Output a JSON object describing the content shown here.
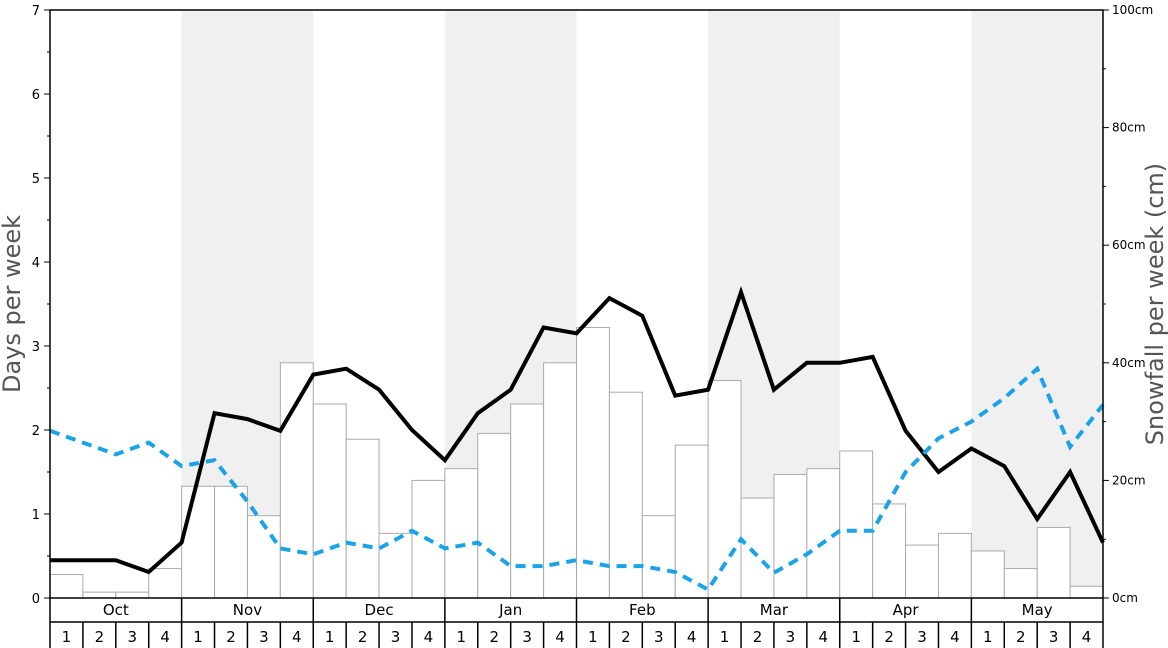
{
  "chart_data": {
    "type": "bar",
    "months": [
      "Oct",
      "Nov",
      "Dec",
      "Jan",
      "Feb",
      "Mar",
      "Apr",
      "May"
    ],
    "weeks": [
      "1",
      "2",
      "3",
      "4"
    ],
    "ylabel": "Days per week",
    "ylabel_right": "Snowfall per week (cm)",
    "ylim": [
      0,
      7
    ],
    "y_ticks": [
      "0",
      "1",
      "2",
      "3",
      "4",
      "5",
      "6",
      "7"
    ],
    "ylim_right": [
      0,
      100
    ],
    "y_ticks_right": [
      "0cm",
      "20cm",
      "40cm",
      "60cm",
      "80cm",
      "100cm"
    ],
    "shaded_months": [
      "Nov",
      "Jan",
      "Mar",
      "May"
    ],
    "series": [
      {
        "kind": "bar",
        "axis": "right",
        "color": "#ffffff",
        "edge_color": "#aaaaaa",
        "values": [
          4,
          1,
          1,
          5,
          19,
          19,
          14,
          40,
          33,
          27,
          11,
          20,
          22,
          28,
          33,
          40,
          46,
          35,
          14,
          26,
          37,
          17,
          21,
          22,
          25,
          16,
          9,
          11,
          8,
          5,
          12,
          2
        ]
      },
      {
        "kind": "line",
        "axis": "left",
        "style": "solid",
        "color": "#000000",
        "values": [
          0.45,
          0.45,
          0.45,
          0.31,
          0.66,
          2.2,
          2.13,
          1.99,
          2.66,
          2.73,
          2.48,
          2.0,
          1.64,
          2.2,
          2.48,
          3.22,
          3.15,
          3.57,
          3.36,
          2.41,
          2.48,
          3.64,
          2.48,
          2.8,
          2.8,
          2.87,
          1.99,
          1.5,
          1.78,
          1.57,
          0.94,
          1.5,
          0.66
        ]
      },
      {
        "kind": "line",
        "axis": "left",
        "style": "dashed",
        "color": "#1ba3e8",
        "values": [
          1.99,
          1.85,
          1.71,
          1.85,
          1.57,
          1.64,
          1.15,
          0.59,
          0.52,
          0.66,
          0.59,
          0.8,
          0.59,
          0.66,
          0.38,
          0.38,
          0.45,
          0.38,
          0.38,
          0.31,
          0.1,
          0.7,
          0.3,
          0.52,
          0.8,
          0.8,
          1.5,
          1.9,
          2.1,
          2.38,
          2.73,
          1.8,
          2.3
        ]
      }
    ]
  }
}
